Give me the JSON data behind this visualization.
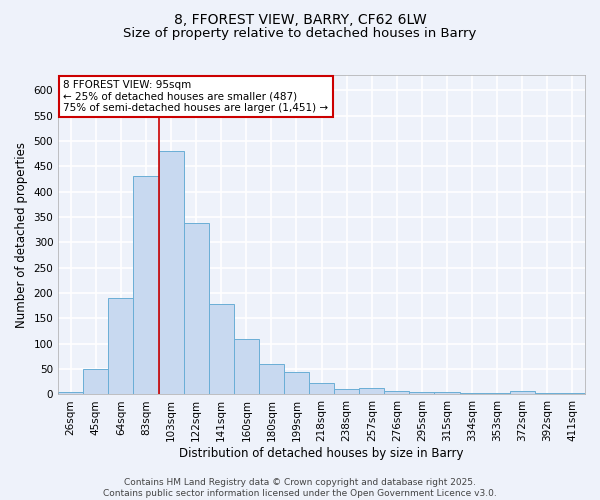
{
  "title_line1": "8, FFOREST VIEW, BARRY, CF62 6LW",
  "title_line2": "Size of property relative to detached houses in Barry",
  "xlabel": "Distribution of detached houses by size in Barry",
  "ylabel": "Number of detached properties",
  "categories": [
    "26sqm",
    "45sqm",
    "64sqm",
    "83sqm",
    "103sqm",
    "122sqm",
    "141sqm",
    "160sqm",
    "180sqm",
    "199sqm",
    "218sqm",
    "238sqm",
    "257sqm",
    "276sqm",
    "295sqm",
    "315sqm",
    "334sqm",
    "353sqm",
    "372sqm",
    "392sqm",
    "411sqm"
  ],
  "values": [
    5,
    50,
    190,
    430,
    480,
    338,
    178,
    110,
    60,
    44,
    22,
    10,
    12,
    6,
    4,
    4,
    2,
    2,
    7,
    2,
    3
  ],
  "bar_color": "#c8d9f0",
  "bar_edge_color": "#6aaed6",
  "background_color": "#eef2fa",
  "grid_color": "#ffffff",
  "ylim": [
    0,
    630
  ],
  "yticks": [
    0,
    50,
    100,
    150,
    200,
    250,
    300,
    350,
    400,
    450,
    500,
    550,
    600
  ],
  "annotation_text": "8 FFOREST VIEW: 95sqm\n← 25% of detached houses are smaller (487)\n75% of semi-detached houses are larger (1,451) →",
  "annotation_box_color": "#ffffff",
  "annotation_box_edge": "#cc0000",
  "vline_color": "#cc0000",
  "footer_text": "Contains HM Land Registry data © Crown copyright and database right 2025.\nContains public sector information licensed under the Open Government Licence v3.0.",
  "title_fontsize": 10,
  "subtitle_fontsize": 9.5,
  "label_fontsize": 8.5,
  "tick_fontsize": 7.5,
  "footer_fontsize": 6.5,
  "annot_fontsize": 7.5
}
